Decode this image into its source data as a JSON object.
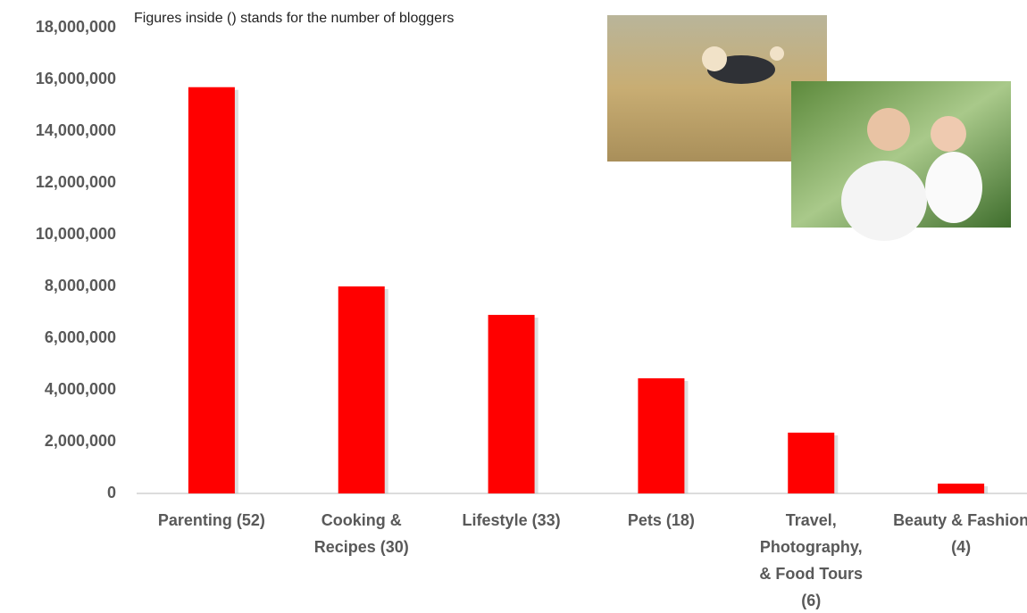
{
  "chart_data": {
    "type": "bar",
    "annotation": "Figures inside () stands for the number of bloggers",
    "categories": [
      "Parenting (52)",
      "Cooking & Recipes (30)",
      "Lifestyle (33)",
      "Pets (18)",
      "Travel, Photography, & Food Tours (6)",
      "Beauty & Fashion (4)"
    ],
    "values": [
      15700000,
      8000000,
      6900000,
      4450000,
      2350000,
      380000
    ],
    "color": "#ff0000",
    "ylim": [
      0,
      18000000
    ],
    "yticks": [
      0,
      {
        "value": 2000000,
        "label": "2,000,000"
      },
      {
        "value": 4000000,
        "label": "4,000,000"
      },
      {
        "value": 6000000,
        "label": "6,000,000"
      },
      {
        "value": 8000000,
        "label": "8,000,000"
      },
      {
        "value": 10000000,
        "label": "10,000,000"
      },
      {
        "value": 12000000,
        "label": "12,000,000"
      },
      {
        "value": 14000000,
        "label": "14,000,000"
      },
      {
        "value": 16000000,
        "label": "16,000,000"
      },
      {
        "value": 18000000,
        "label": "18,000,000"
      }
    ],
    "grid": false
  }
}
